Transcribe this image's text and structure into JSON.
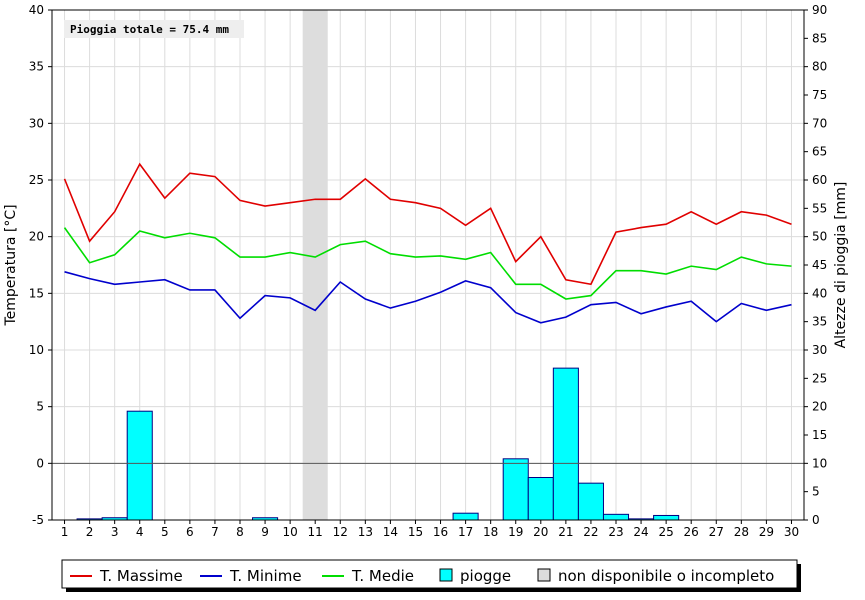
{
  "chart_data": {
    "type": "line",
    "annotation": "Pioggia totale = 75.4 mm",
    "x": [
      1,
      2,
      3,
      4,
      5,
      6,
      7,
      8,
      9,
      10,
      11,
      12,
      13,
      14,
      15,
      16,
      17,
      18,
      19,
      20,
      21,
      22,
      23,
      24,
      25,
      26,
      27,
      28,
      29,
      30
    ],
    "xlim": [
      0.5,
      30.5
    ],
    "ylabel": "Temperatura [°C]",
    "ylim": [
      -5,
      40
    ],
    "yticks": [
      -5,
      0,
      5,
      10,
      15,
      20,
      25,
      30,
      35,
      40
    ],
    "y2label": "Altezze di pioggia [mm]",
    "y2lim": [
      0,
      90
    ],
    "y2ticks": [
      0,
      5,
      10,
      15,
      20,
      25,
      30,
      35,
      40,
      45,
      50,
      55,
      60,
      65,
      70,
      75,
      80,
      85,
      90
    ],
    "unavailable_days": [
      11
    ],
    "series": [
      {
        "name": "T. Massime",
        "axis": "left",
        "color": "#e00000",
        "values": [
          25.1,
          19.6,
          22.2,
          26.4,
          23.4,
          25.6,
          25.3,
          23.2,
          22.7,
          23.0,
          23.3,
          23.3,
          25.1,
          23.3,
          23.0,
          22.5,
          21.0,
          22.5,
          17.8,
          20.0,
          16.2,
          15.8,
          20.4,
          20.8,
          21.1,
          22.2,
          21.1,
          22.2,
          21.9,
          21.1
        ]
      },
      {
        "name": "T. Minime",
        "axis": "left",
        "color": "#0000cc",
        "values": [
          16.9,
          16.3,
          15.8,
          16.0,
          16.2,
          15.3,
          15.3,
          12.8,
          14.8,
          14.6,
          13.5,
          16.0,
          14.5,
          13.7,
          14.3,
          15.1,
          16.1,
          15.5,
          13.3,
          12.4,
          12.9,
          14.0,
          14.2,
          13.2,
          13.8,
          14.3,
          12.5,
          14.1,
          13.5,
          14.0
        ]
      },
      {
        "name": "T. Medie",
        "axis": "left",
        "color": "#00dd00",
        "values": [
          20.8,
          17.7,
          18.4,
          20.5,
          19.9,
          20.3,
          19.9,
          18.2,
          18.2,
          18.6,
          18.2,
          19.3,
          19.6,
          18.5,
          18.2,
          18.3,
          18.0,
          18.6,
          15.8,
          15.8,
          14.5,
          14.8,
          17.0,
          17.0,
          16.7,
          17.4,
          17.1,
          18.2,
          17.6,
          17.4
        ]
      },
      {
        "name": "piogge",
        "axis": "right",
        "type": "bar",
        "color": "#00ffff",
        "values": [
          0,
          0.2,
          0.4,
          19.2,
          0,
          0,
          0,
          0,
          0.4,
          0,
          0,
          0,
          0,
          0,
          0,
          0,
          1.2,
          0,
          10.8,
          7.5,
          26.8,
          6.5,
          1.0,
          0.2,
          0.8,
          0,
          0,
          0,
          0,
          0
        ]
      }
    ],
    "legend": [
      {
        "label": "T. Massime",
        "symbol": "line",
        "color": "#e00000"
      },
      {
        "label": "T. Minime",
        "symbol": "line",
        "color": "#0000cc"
      },
      {
        "label": "T. Medie",
        "symbol": "line",
        "color": "#00dd00"
      },
      {
        "label": "piogge",
        "symbol": "box",
        "color": "#00ffff"
      },
      {
        "label": "non disponibile o incompleto",
        "symbol": "box",
        "color": "#dddddd"
      }
    ],
    "legend_position": "bottom",
    "grid": true
  }
}
